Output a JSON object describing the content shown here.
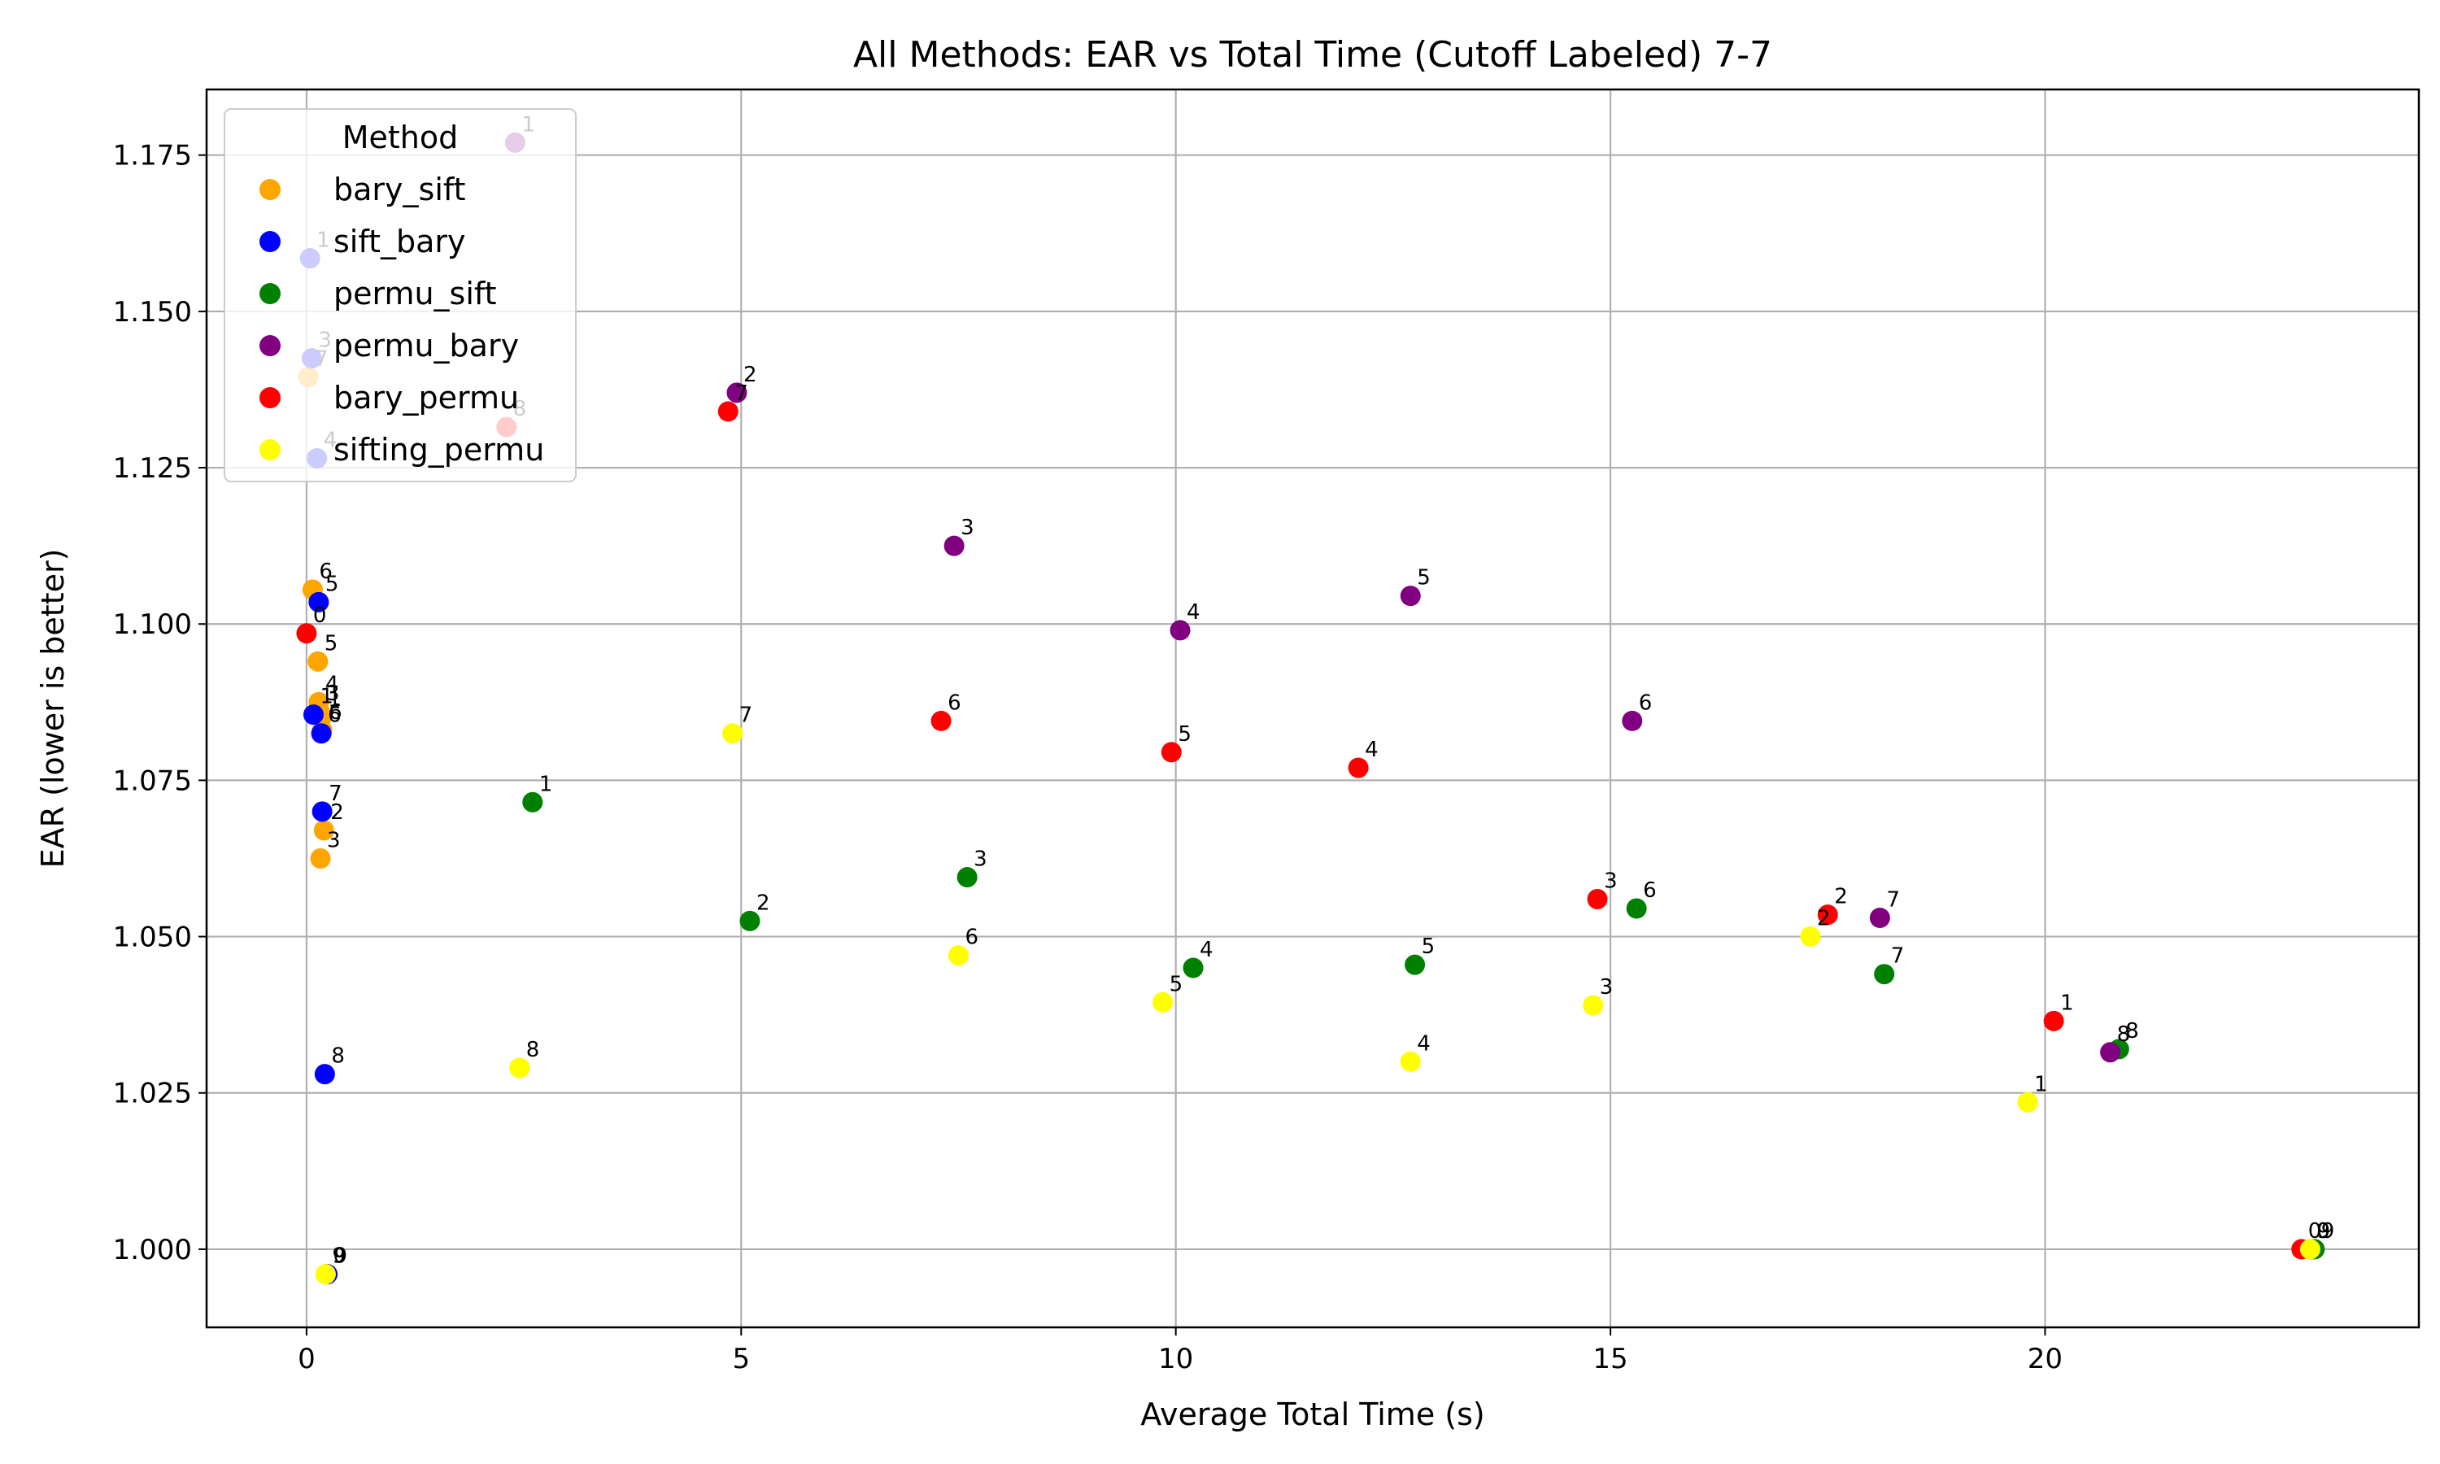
{
  "chart_data": {
    "type": "scatter",
    "title": "All Methods: EAR vs Total Time (Cutoff Labeled) 7-7",
    "xlabel": "Average Total Time (s)",
    "ylabel": "EAR (lower is better)",
    "xlim": [
      -1.15,
      24.3
    ],
    "ylim": [
      0.9875,
      1.1855
    ],
    "xticks": [
      0,
      5,
      10,
      15,
      20
    ],
    "xtick_labels": [
      "0",
      "5",
      "10",
      "15",
      "20"
    ],
    "yticks": [
      1.0,
      1.025,
      1.05,
      1.075,
      1.1,
      1.125,
      1.15,
      1.175
    ],
    "ytick_labels": [
      "1.000",
      "1.025",
      "1.050",
      "1.075",
      "1.100",
      "1.125",
      "1.150",
      "1.175"
    ],
    "grid": true,
    "legend": {
      "title": "Method",
      "position": "top-left"
    },
    "series": [
      {
        "name": "bary_sift",
        "color": "#ffa500",
        "points": [
          {
            "x": 0.02,
            "y": 1.1395,
            "label": "7"
          },
          {
            "x": 0.12,
            "y": 1.1265,
            "label": "4"
          },
          {
            "x": 0.07,
            "y": 1.1055,
            "label": "6"
          },
          {
            "x": 0.13,
            "y": 1.094,
            "label": "5"
          },
          {
            "x": 0.14,
            "y": 1.0875,
            "label": "4"
          },
          {
            "x": 0.15,
            "y": 1.086,
            "label": "3"
          },
          {
            "x": 0.17,
            "y": 1.085,
            "label": "1"
          },
          {
            "x": 0.18,
            "y": 1.083,
            "label": "6"
          },
          {
            "x": 0.2,
            "y": 1.067,
            "label": "2"
          },
          {
            "x": 0.16,
            "y": 1.0625,
            "label": "3"
          },
          {
            "x": 0.23,
            "y": 0.996,
            "label": "0"
          }
        ]
      },
      {
        "name": "sift_bary",
        "color": "#0000ff",
        "points": [
          {
            "x": 0.04,
            "y": 1.1585,
            "label": "1"
          },
          {
            "x": 0.06,
            "y": 1.1425,
            "label": "3"
          },
          {
            "x": 0.12,
            "y": 1.1265,
            "label": "4"
          },
          {
            "x": 0.14,
            "y": 1.1035,
            "label": "5"
          },
          {
            "x": 0.08,
            "y": 1.0855,
            "label": "1"
          },
          {
            "x": 0.17,
            "y": 1.0825,
            "label": "6"
          },
          {
            "x": 0.18,
            "y": 1.07,
            "label": "7"
          },
          {
            "x": 0.21,
            "y": 1.028,
            "label": "8"
          },
          {
            "x": 0.24,
            "y": 0.996,
            "label": "9"
          }
        ]
      },
      {
        "name": "permu_sift",
        "color": "#008000",
        "points": [
          {
            "x": 2.6,
            "y": 1.0715,
            "label": "1"
          },
          {
            "x": 5.1,
            "y": 1.0525,
            "label": "2"
          },
          {
            "x": 7.6,
            "y": 1.0595,
            "label": "3"
          },
          {
            "x": 10.2,
            "y": 1.045,
            "label": "4"
          },
          {
            "x": 12.75,
            "y": 1.0455,
            "label": "5"
          },
          {
            "x": 15.3,
            "y": 1.0545,
            "label": "6"
          },
          {
            "x": 18.15,
            "y": 1.044,
            "label": "7"
          },
          {
            "x": 20.85,
            "y": 1.032,
            "label": "8"
          },
          {
            "x": 23.1,
            "y": 1.0,
            "label": "9"
          }
        ]
      },
      {
        "name": "permu_bary",
        "color": "#800080",
        "points": [
          {
            "x": 2.4,
            "y": 1.177,
            "label": "1"
          },
          {
            "x": 4.95,
            "y": 1.137,
            "label": "2"
          },
          {
            "x": 7.45,
            "y": 1.1125,
            "label": "3"
          },
          {
            "x": 10.05,
            "y": 1.099,
            "label": "4"
          },
          {
            "x": 12.7,
            "y": 1.1045,
            "label": "5"
          },
          {
            "x": 15.25,
            "y": 1.0845,
            "label": "6"
          },
          {
            "x": 18.1,
            "y": 1.053,
            "label": "7"
          },
          {
            "x": 20.75,
            "y": 1.0315,
            "label": "8"
          },
          {
            "x": 23.05,
            "y": 1.0,
            "label": "9"
          }
        ]
      },
      {
        "name": "bary_permu",
        "color": "#ff0000",
        "points": [
          {
            "x": 0.0,
            "y": 1.0985,
            "label": "0"
          },
          {
            "x": 2.3,
            "y": 1.1315,
            "label": "8"
          },
          {
            "x": 4.85,
            "y": 1.134,
            "label": "7"
          },
          {
            "x": 7.3,
            "y": 1.0845,
            "label": "6"
          },
          {
            "x": 9.95,
            "y": 1.0795,
            "label": "5"
          },
          {
            "x": 12.1,
            "y": 1.077,
            "label": "4"
          },
          {
            "x": 14.85,
            "y": 1.056,
            "label": "3"
          },
          {
            "x": 17.5,
            "y": 1.0535,
            "label": "2"
          },
          {
            "x": 20.1,
            "y": 1.0365,
            "label": "1"
          },
          {
            "x": 22.95,
            "y": 1.0,
            "label": "0"
          }
        ]
      },
      {
        "name": "sifting_permu",
        "color": "#ffff00",
        "points": [
          {
            "x": 0.22,
            "y": 0.996,
            "label": "9"
          },
          {
            "x": 2.45,
            "y": 1.029,
            "label": "8"
          },
          {
            "x": 4.9,
            "y": 1.0825,
            "label": "7"
          },
          {
            "x": 7.5,
            "y": 1.047,
            "label": "6"
          },
          {
            "x": 9.85,
            "y": 1.0395,
            "label": "5"
          },
          {
            "x": 12.7,
            "y": 1.03,
            "label": "4"
          },
          {
            "x": 14.8,
            "y": 1.039,
            "label": "3"
          },
          {
            "x": 17.3,
            "y": 1.05,
            "label": "2"
          },
          {
            "x": 19.8,
            "y": 1.0235,
            "label": "1"
          },
          {
            "x": 23.05,
            "y": 1.0,
            "label": "0"
          }
        ]
      }
    ]
  }
}
